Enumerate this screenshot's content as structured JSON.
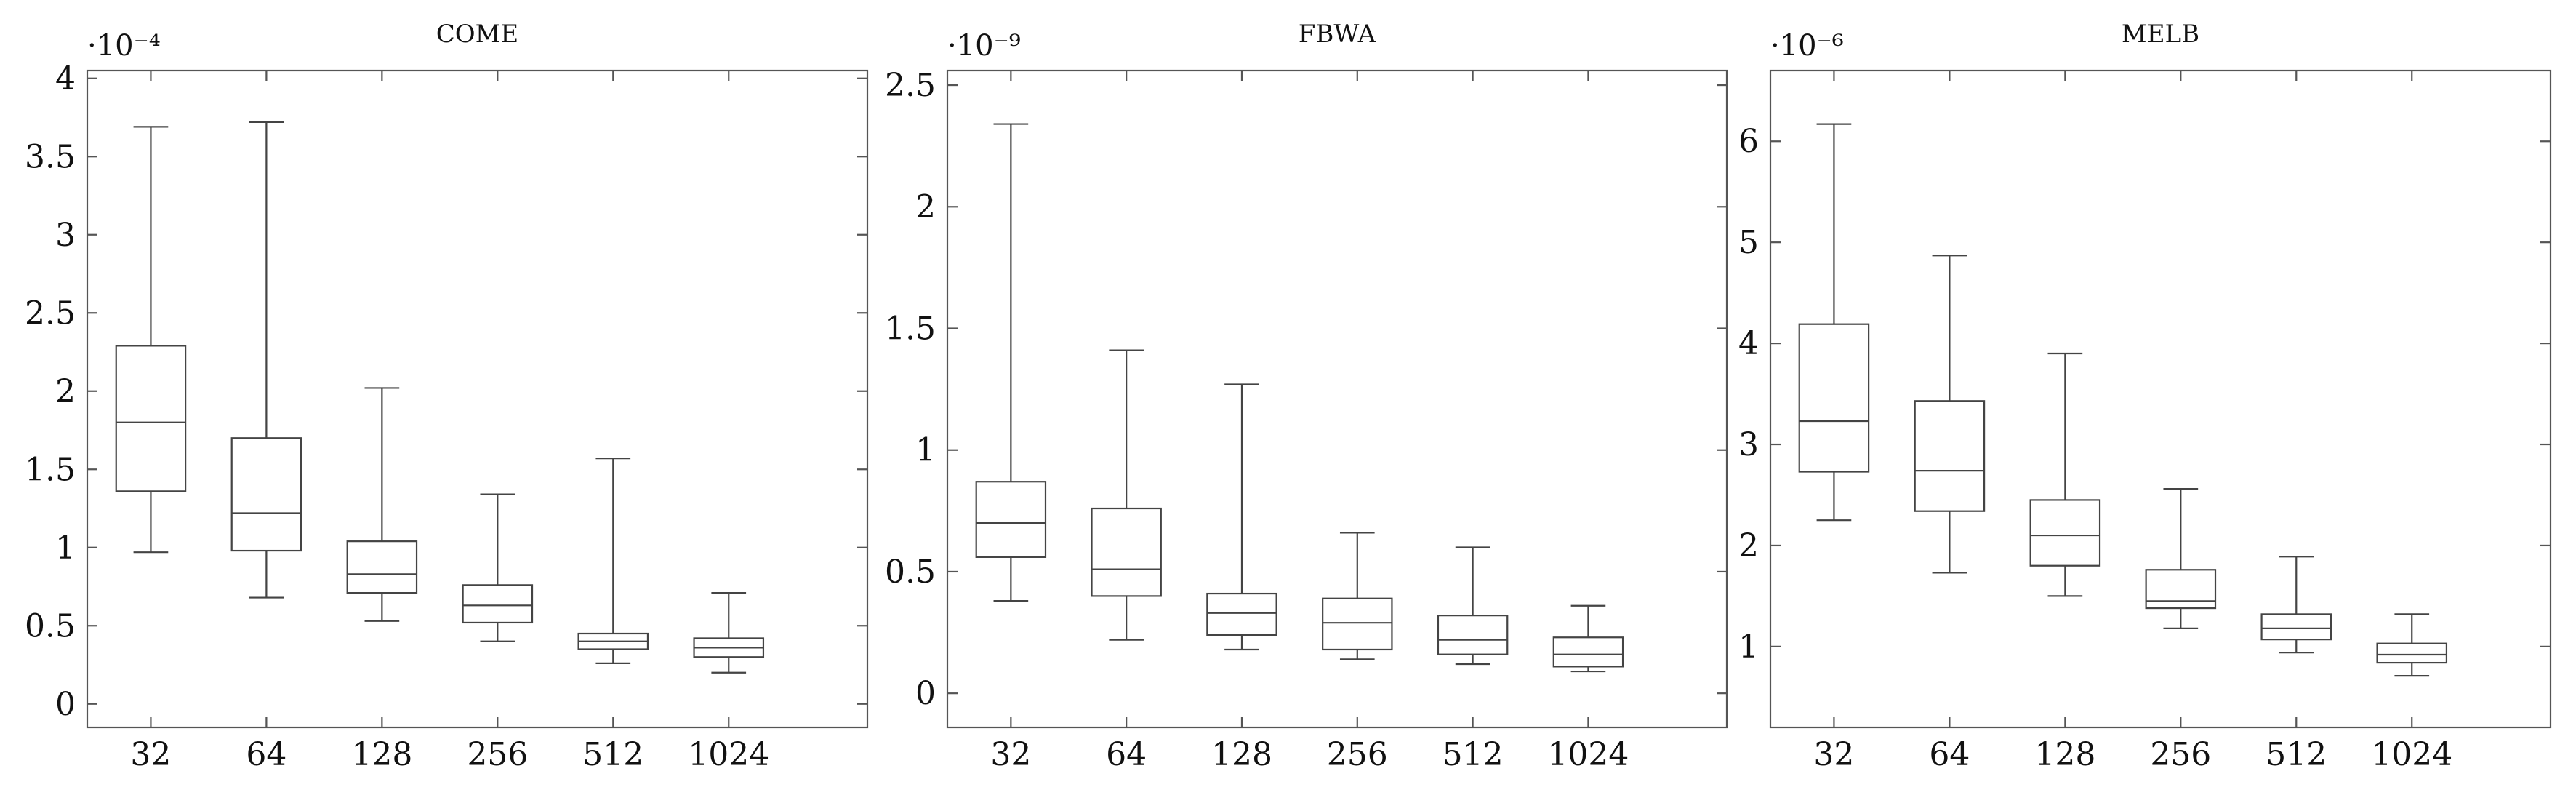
{
  "chart_data": [
    {
      "type": "box",
      "title": "COME",
      "scale_label": "·10⁻⁴",
      "categories": [
        "32",
        "64",
        "128",
        "256",
        "512",
        "1024"
      ],
      "ylim": [
        -0.15,
        4.05
      ],
      "yticks": [
        0,
        0.5,
        1,
        1.5,
        2,
        2.5,
        3,
        3.5,
        4
      ],
      "ytick_labels": [
        "0",
        "0.5",
        "1",
        "1.5",
        "2",
        "2.5",
        "3",
        "3.5",
        "4"
      ],
      "boxes": [
        {
          "min": 0.97,
          "q1": 1.36,
          "median": 1.8,
          "q3": 2.29,
          "max": 3.69
        },
        {
          "min": 0.68,
          "q1": 0.98,
          "median": 1.22,
          "q3": 1.7,
          "max": 3.72
        },
        {
          "min": 0.53,
          "q1": 0.71,
          "median": 0.83,
          "q3": 1.04,
          "max": 2.02
        },
        {
          "min": 0.4,
          "q1": 0.52,
          "median": 0.63,
          "q3": 0.76,
          "max": 1.34
        },
        {
          "min": 0.26,
          "q1": 0.35,
          "median": 0.4,
          "q3": 0.45,
          "max": 1.57
        },
        {
          "min": 0.2,
          "q1": 0.3,
          "median": 0.36,
          "q3": 0.42,
          "max": 0.71
        }
      ]
    },
    {
      "type": "box",
      "title": "FBWA",
      "scale_label": "·10⁻⁹",
      "categories": [
        "32",
        "64",
        "128",
        "256",
        "512",
        "1024"
      ],
      "ylim": [
        -0.14,
        2.56
      ],
      "yticks": [
        0,
        0.5,
        1,
        1.5,
        2,
        2.5
      ],
      "ytick_labels": [
        "0",
        "0.5",
        "1",
        "1.5",
        "2",
        "2.5"
      ],
      "boxes": [
        {
          "min": 0.38,
          "q1": 0.56,
          "median": 0.7,
          "q3": 0.87,
          "max": 2.34
        },
        {
          "min": 0.22,
          "q1": 0.4,
          "median": 0.51,
          "q3": 0.76,
          "max": 1.41
        },
        {
          "min": 0.18,
          "q1": 0.24,
          "median": 0.33,
          "q3": 0.41,
          "max": 1.27
        },
        {
          "min": 0.14,
          "q1": 0.18,
          "median": 0.29,
          "q3": 0.39,
          "max": 0.66
        },
        {
          "min": 0.12,
          "q1": 0.16,
          "median": 0.22,
          "q3": 0.32,
          "max": 0.6
        },
        {
          "min": 0.09,
          "q1": 0.11,
          "median": 0.16,
          "q3": 0.23,
          "max": 0.36
        }
      ]
    },
    {
      "type": "box",
      "title": "MELB",
      "scale_label": "·10⁻⁶",
      "categories": [
        "32",
        "64",
        "128",
        "256",
        "512",
        "1024"
      ],
      "ylim": [
        0.2,
        6.7
      ],
      "yticks": [
        1,
        2,
        3,
        4,
        5,
        6
      ],
      "ytick_labels": [
        "1",
        "2",
        "3",
        "4",
        "5",
        "6"
      ],
      "boxes": [
        {
          "min": 2.25,
          "q1": 2.73,
          "median": 3.23,
          "q3": 4.19,
          "max": 6.17
        },
        {
          "min": 1.73,
          "q1": 2.34,
          "median": 2.74,
          "q3": 3.43,
          "max": 4.87
        },
        {
          "min": 1.5,
          "q1": 1.8,
          "median": 2.1,
          "q3": 2.45,
          "max": 3.9
        },
        {
          "min": 1.18,
          "q1": 1.38,
          "median": 1.45,
          "q3": 1.76,
          "max": 2.56
        },
        {
          "min": 0.94,
          "q1": 1.07,
          "median": 1.18,
          "q3": 1.32,
          "max": 1.89
        },
        {
          "min": 0.71,
          "q1": 0.84,
          "median": 0.92,
          "q3": 1.03,
          "max": 1.32
        }
      ]
    }
  ]
}
